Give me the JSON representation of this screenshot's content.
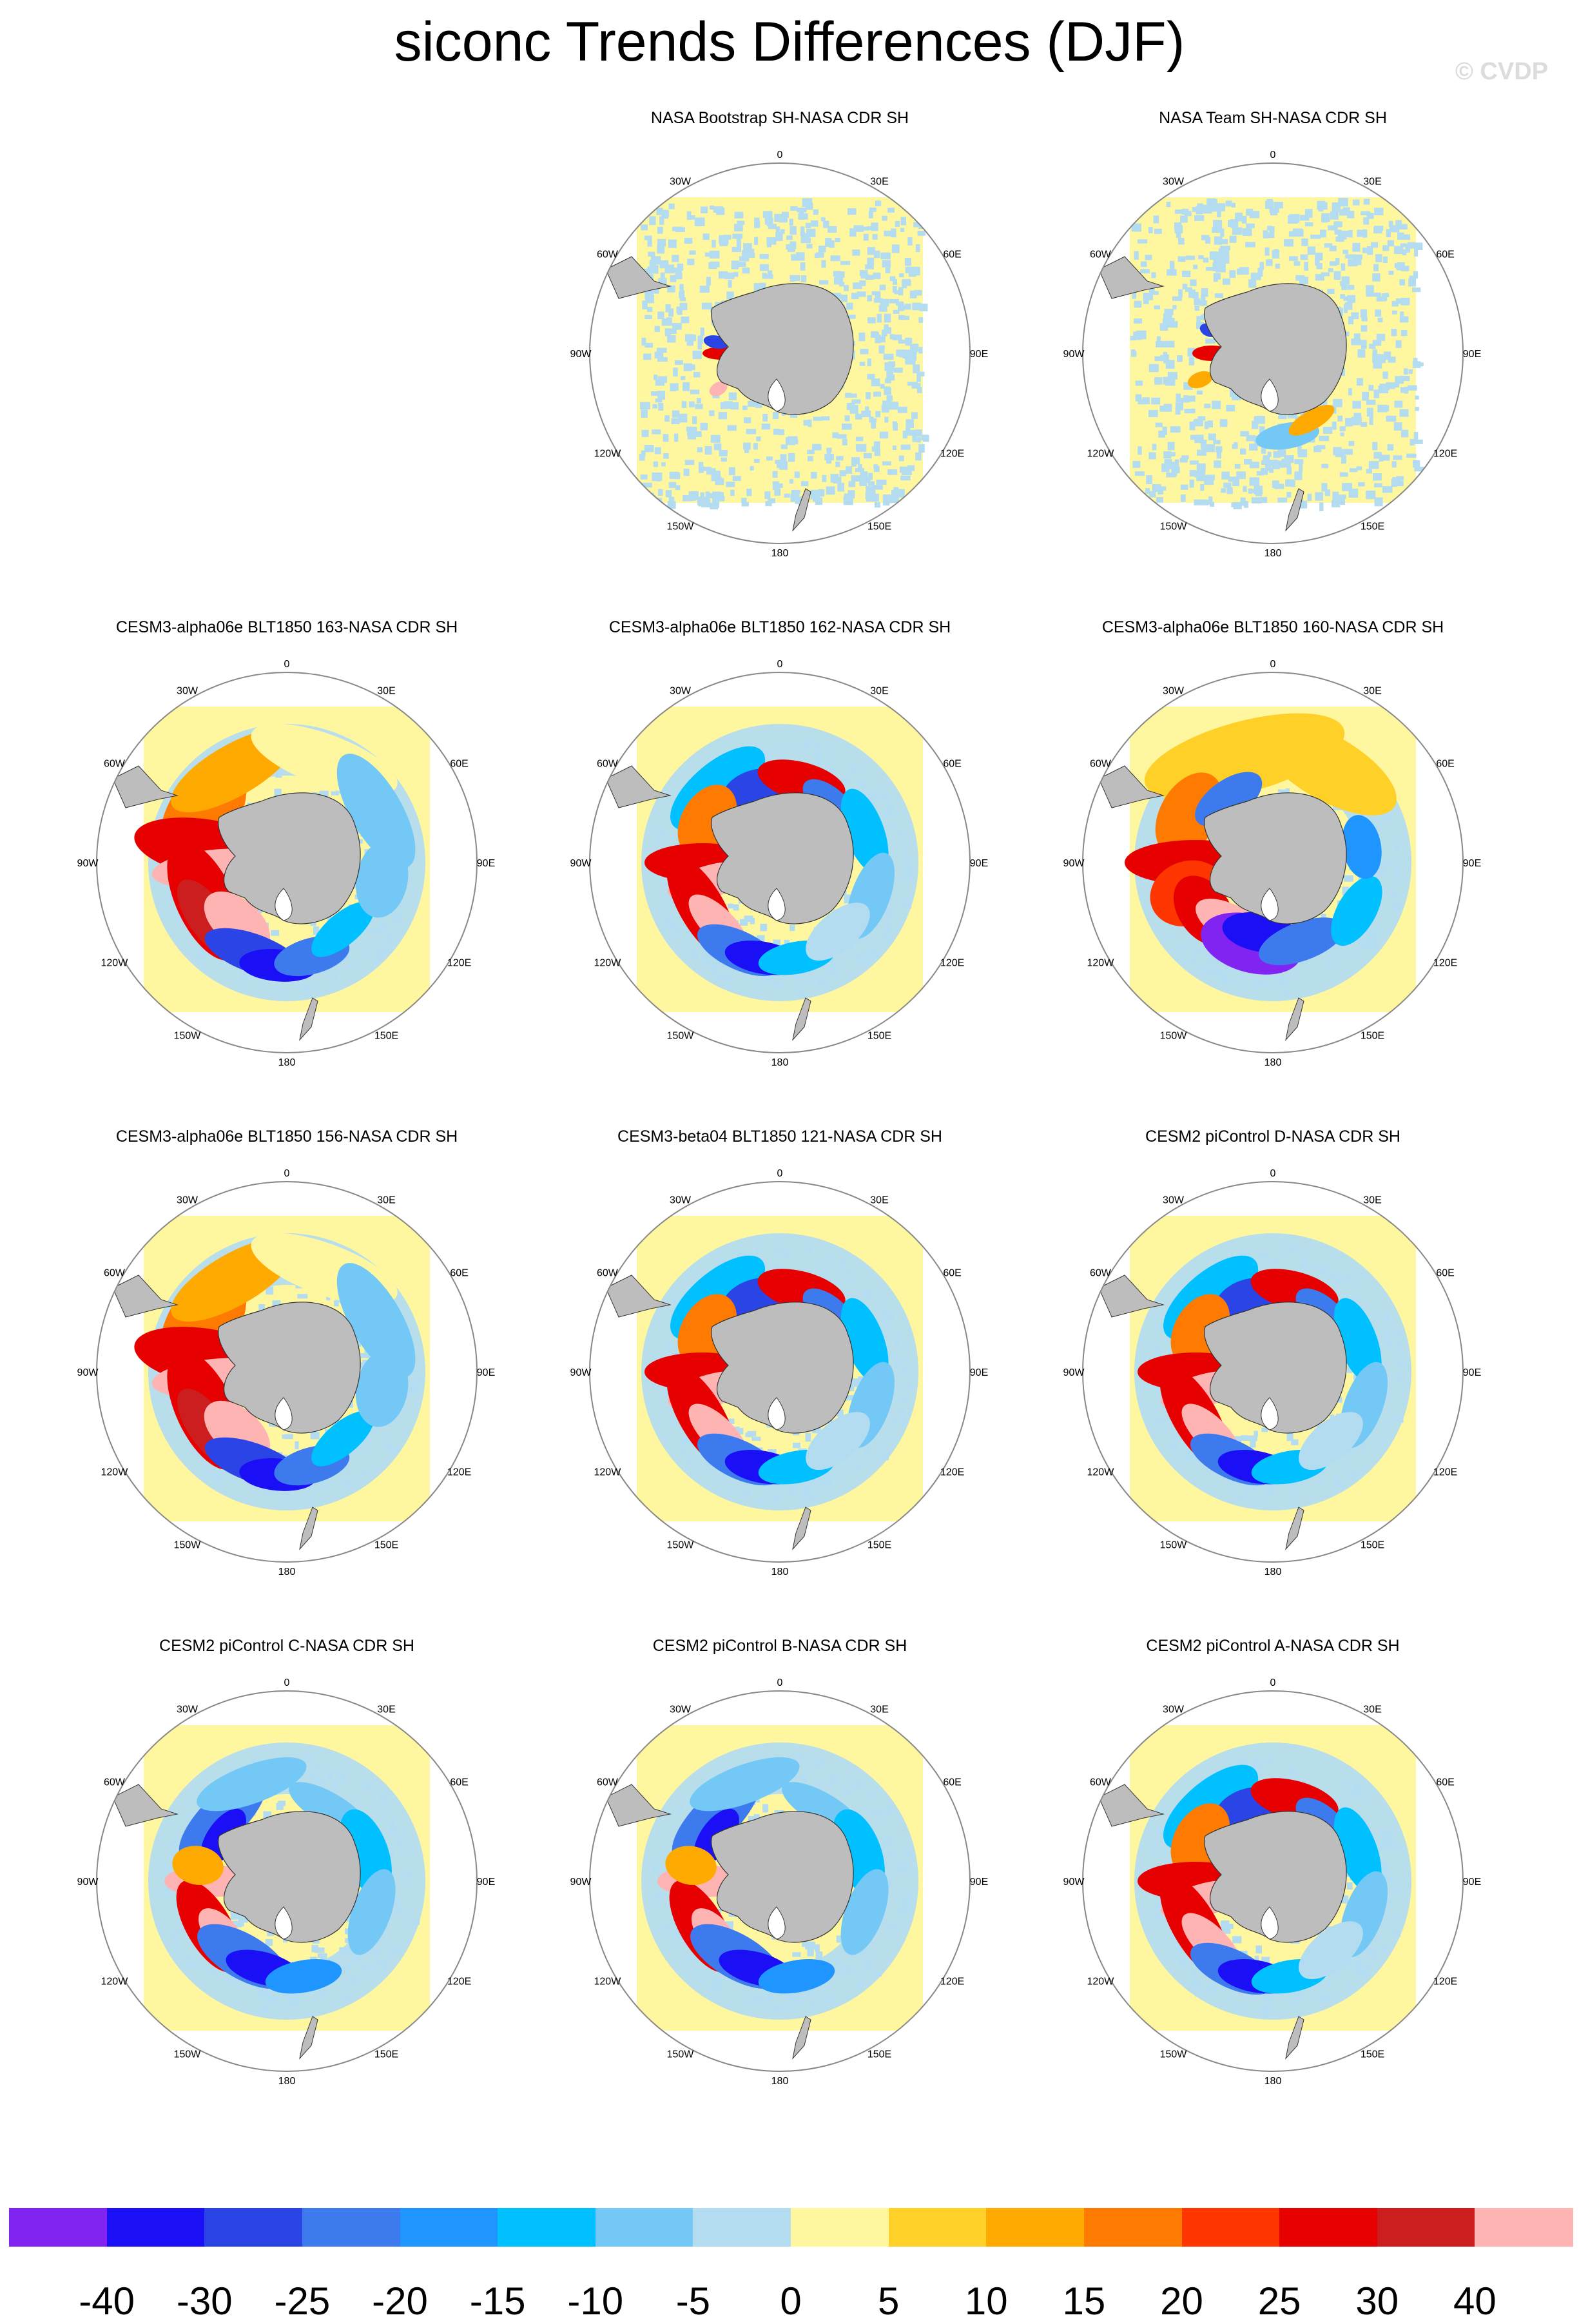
{
  "title": "siconc Trends Differences (DJF)",
  "watermark": "© CVDP",
  "colorbar": {
    "colors": [
      "#8124f2",
      "#1b0ff5",
      "#2b44e6",
      "#3d7aee",
      "#1f95ff",
      "#00c0ff",
      "#74c8f6",
      "#b4dcf0",
      "#fff6a0",
      "#ffd028",
      "#ffaa00",
      "#ff7a00",
      "#ff3600",
      "#e60000",
      "#cc1e1e",
      "#ffb4b4"
    ],
    "labels": [
      "-40",
      "-30",
      "-25",
      "-20",
      "-15",
      "-10",
      "-5",
      "0",
      "5",
      "10",
      "15",
      "20",
      "25",
      "30",
      "40"
    ]
  },
  "map_labels": {
    "top": "0",
    "bottom": "180",
    "upper_left": "30W",
    "upper_right": "30E",
    "mid_upper_left": "60W",
    "mid_upper_right": "60E",
    "left": "90W",
    "right": "90E",
    "mid_lower_left": "120W",
    "mid_lower_right": "120E",
    "lower_left": "150W",
    "lower_right": "150E"
  },
  "chart_data": [
    {
      "type": "heatmap",
      "title": "NASA Bootstrap SH-NASA CDR SH",
      "regime": "obs",
      "col": 1,
      "row": 0
    },
    {
      "type": "heatmap",
      "title": "NASA Team SH-NASA CDR SH",
      "regime": "obs2",
      "col": 2,
      "row": 0
    },
    {
      "type": "heatmap",
      "title": "CESM3-alpha06e BLT1850 163-NASA CDR SH",
      "regime": "warm",
      "col": 0,
      "row": 1
    },
    {
      "type": "heatmap",
      "title": "CESM3-alpha06e BLT1850 162-NASA CDR SH",
      "regime": "mixed",
      "col": 1,
      "row": 1
    },
    {
      "type": "heatmap",
      "title": "CESM3-alpha06e BLT1850 160-NASA CDR SH",
      "regime": "warm2",
      "col": 2,
      "row": 1
    },
    {
      "type": "heatmap",
      "title": "CESM3-alpha06e BLT1850 156-NASA CDR SH",
      "regime": "warm",
      "col": 0,
      "row": 2
    },
    {
      "type": "heatmap",
      "title": "CESM3-beta04 BLT1850 121-NASA CDR SH",
      "regime": "mixed",
      "col": 1,
      "row": 2
    },
    {
      "type": "heatmap",
      "title": "CESM2 piControl D-NASA CDR SH",
      "regime": "mixed",
      "col": 2,
      "row": 2
    },
    {
      "type": "heatmap",
      "title": "CESM2 piControl C-NASA CDR SH",
      "regime": "cool",
      "col": 0,
      "row": 3
    },
    {
      "type": "heatmap",
      "title": "CESM2 piControl B-NASA CDR SH",
      "regime": "cool",
      "col": 1,
      "row": 3
    },
    {
      "type": "heatmap",
      "title": "CESM2 piControl A-NASA CDR SH",
      "regime": "mixed",
      "col": 2,
      "row": 3
    }
  ]
}
